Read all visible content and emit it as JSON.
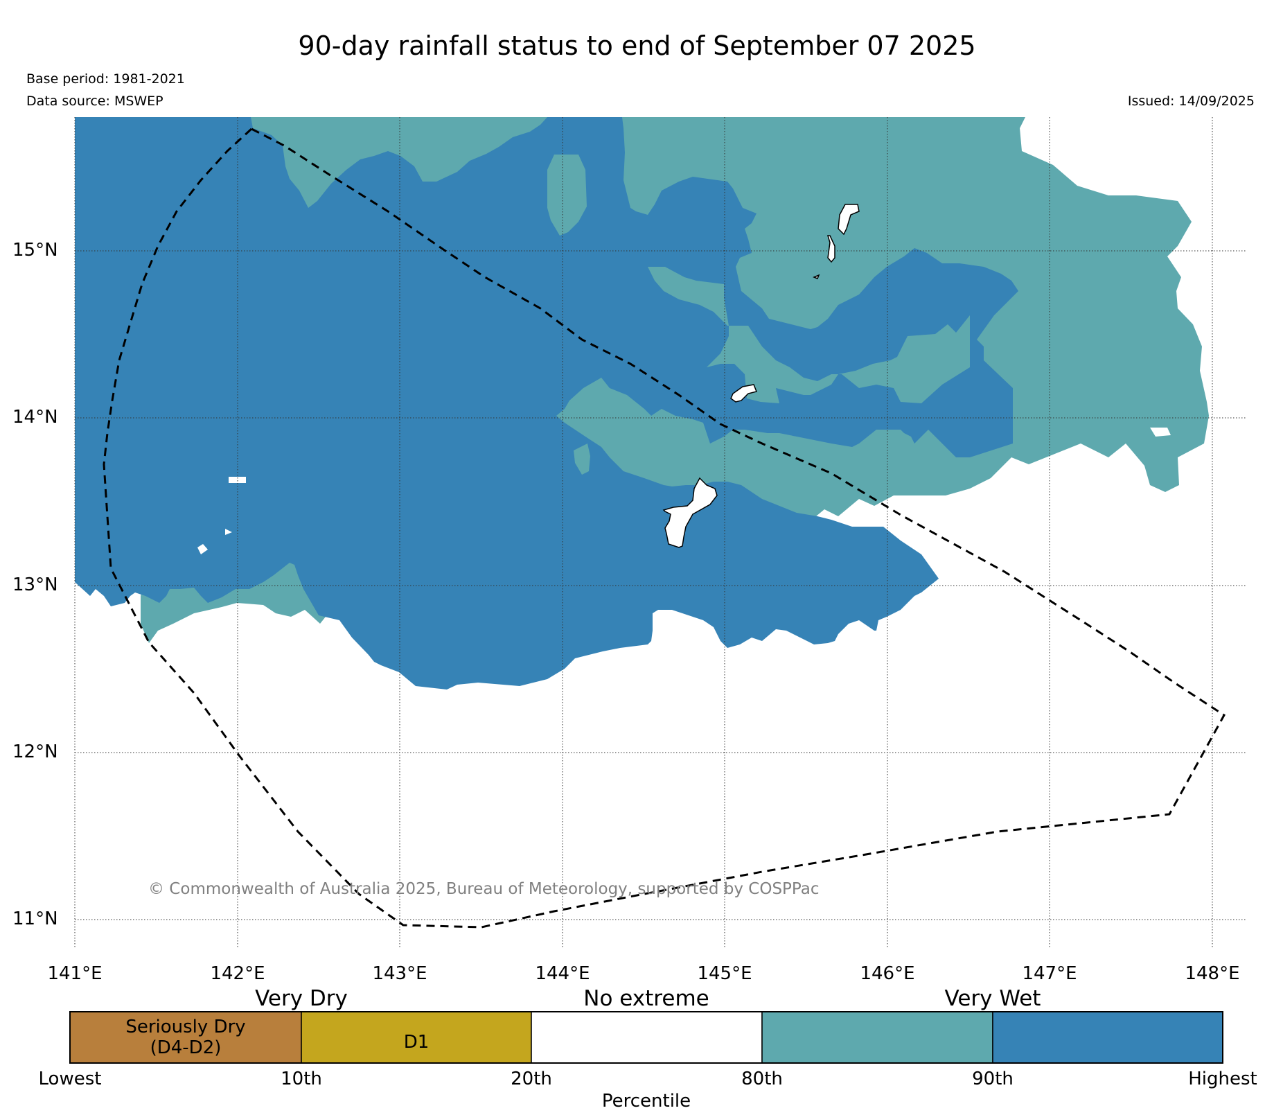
{
  "title": "90-day rainfall status to end of September 07 2025",
  "base_period": "Base period: 1981-2021",
  "data_source": "Data source: MSWEP",
  "issued": "Issued: 14/09/2025",
  "copyright": "© Commonwealth of Australia 2025, Bureau of Meteorology, supported by COSPPac",
  "map": {
    "lon_range": [
      141,
      148.2
    ],
    "lat_range": [
      10.85,
      15.75
    ],
    "lon_ticks": [
      "141°E",
      "142°E",
      "143°E",
      "144°E",
      "145°E",
      "146°E",
      "147°E",
      "148°E"
    ],
    "lat_ticks": [
      "15°N",
      "14°N",
      "13°N",
      "12°N",
      "11°N"
    ],
    "grid": true,
    "region_outline": "dashed"
  },
  "colorbar": {
    "category_headings": [
      "Very Dry",
      "No extreme",
      "Very Wet"
    ],
    "boxes": [
      {
        "label": "Seriously Dry\n(D4-D2)",
        "color": "#b87f3c"
      },
      {
        "label": "D1",
        "color": "#c4a61e"
      },
      {
        "label": "",
        "color": "#ffffff"
      },
      {
        "label": "",
        "color": "#5ea9ae"
      },
      {
        "label": "",
        "color": "#3683b6"
      }
    ],
    "tick_labels": [
      "Lowest",
      "10th",
      "20th",
      "80th",
      "90th",
      "Highest"
    ],
    "axis_label": "Percentile"
  },
  "colors": {
    "very_wet_80_90": "#5ea9ae",
    "very_wet_90_highest": "#3683b6",
    "seriously_dry": "#b87f3c",
    "d1": "#c4a61e"
  }
}
